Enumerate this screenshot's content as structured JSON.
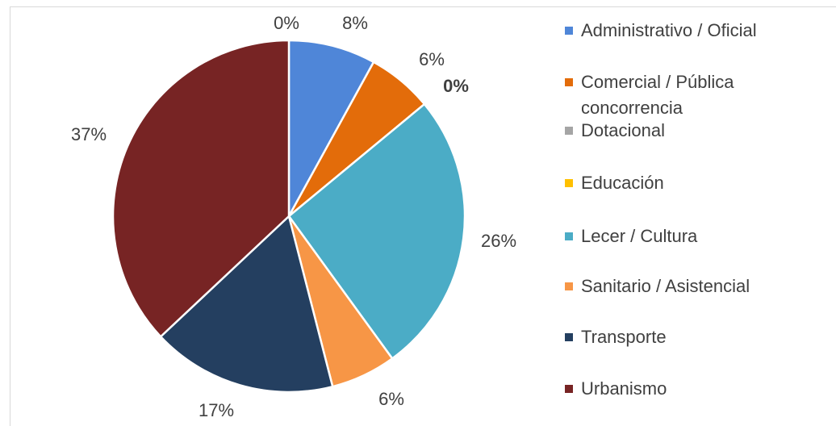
{
  "chart_data": {
    "type": "pie",
    "categories": [
      "Administrativo / Oficial",
      "Comercial / Pública concorrencia",
      "Dotacional",
      "Educación",
      "Lecer / Cultura",
      "Sanitario / Asistencial",
      "Transporte",
      "Urbanismo"
    ],
    "values": [
      8,
      6,
      0,
      0,
      26,
      6,
      17,
      37
    ],
    "value_labels": [
      "8%",
      "6%",
      "0%",
      "0%",
      "26%",
      "6%",
      "17%",
      "37%"
    ],
    "colors": [
      "#4f86d8",
      "#e36c0a",
      "#a5a5a5",
      "#ffc000",
      "#4bacc6",
      "#f79646",
      "#243f60",
      "#772424"
    ],
    "legend": "right"
  }
}
